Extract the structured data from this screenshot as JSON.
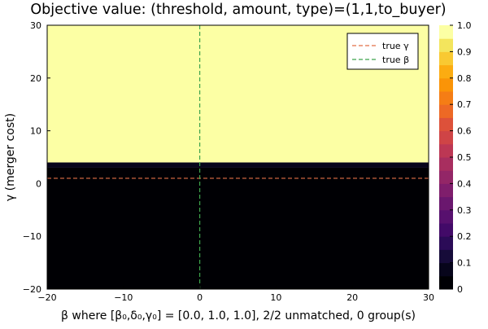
{
  "chart_data": {
    "type": "heatmap",
    "title": "Objective value: (threshold, amount, type)=(1,1,to_buyer)",
    "xlabel": "β where [β₀,δ₀,γ₀] = [0.0, 1.0, 1.0], 2/2 unmatched, 0 group(s)",
    "ylabel": "γ (merger cost)",
    "xlim": [
      -20,
      30
    ],
    "ylim": [
      -20,
      30
    ],
    "x_ticks": [
      -20,
      -10,
      0,
      10,
      20,
      30
    ],
    "y_ticks": [
      -20,
      -10,
      0,
      10,
      20,
      30
    ],
    "x_tick_labels": [
      "−20",
      "−10",
      "0",
      "10",
      "20",
      "30"
    ],
    "y_tick_labels": [
      "−20",
      "−10",
      "0",
      "10",
      "20",
      "30"
    ],
    "bands": [
      {
        "y_from": -20,
        "y_to": 3.0,
        "value": 0.0
      },
      {
        "y_from": 3.0,
        "y_to": 4.0,
        "value": 0.05
      },
      {
        "y_from": 4.0,
        "y_to": 30,
        "value": 1.0
      }
    ],
    "reference_lines": [
      {
        "name": "true γ",
        "orientation": "horizontal",
        "value": 1.0,
        "color": "#e26f46"
      },
      {
        "name": "true β",
        "orientation": "vertical",
        "value": 0.0,
        "color": "#3da44d"
      }
    ],
    "legend": {
      "position": "top-right",
      "entries": [
        {
          "label": "true γ",
          "color": "#e26f46"
        },
        {
          "label": "true β",
          "color": "#3da44d"
        }
      ]
    },
    "colorbar": {
      "min": 0,
      "max": 1,
      "ticks": [
        0,
        0.1,
        0.2,
        0.3,
        0.4,
        0.5,
        0.6,
        0.7,
        0.8,
        0.9,
        1.0
      ],
      "tick_labels": [
        "0",
        "0.1",
        "0.2",
        "0.3",
        "0.4",
        "0.5",
        "0.6",
        "0.7",
        "0.8",
        "0.9",
        "1.0"
      ],
      "levels": 20,
      "colors": [
        "#000004",
        "#07051b",
        "#160b39",
        "#2b0b57",
        "#420a68",
        "#57106e",
        "#6a176e",
        "#7f1e6c",
        "#932667",
        "#a82e5f",
        "#bc3754",
        "#cf4446",
        "#dd513a",
        "#ed6925",
        "#f57d15",
        "#fa9407",
        "#fcac11",
        "#f9c932",
        "#f3e55d",
        "#fcffa4"
      ]
    },
    "grid": false
  }
}
